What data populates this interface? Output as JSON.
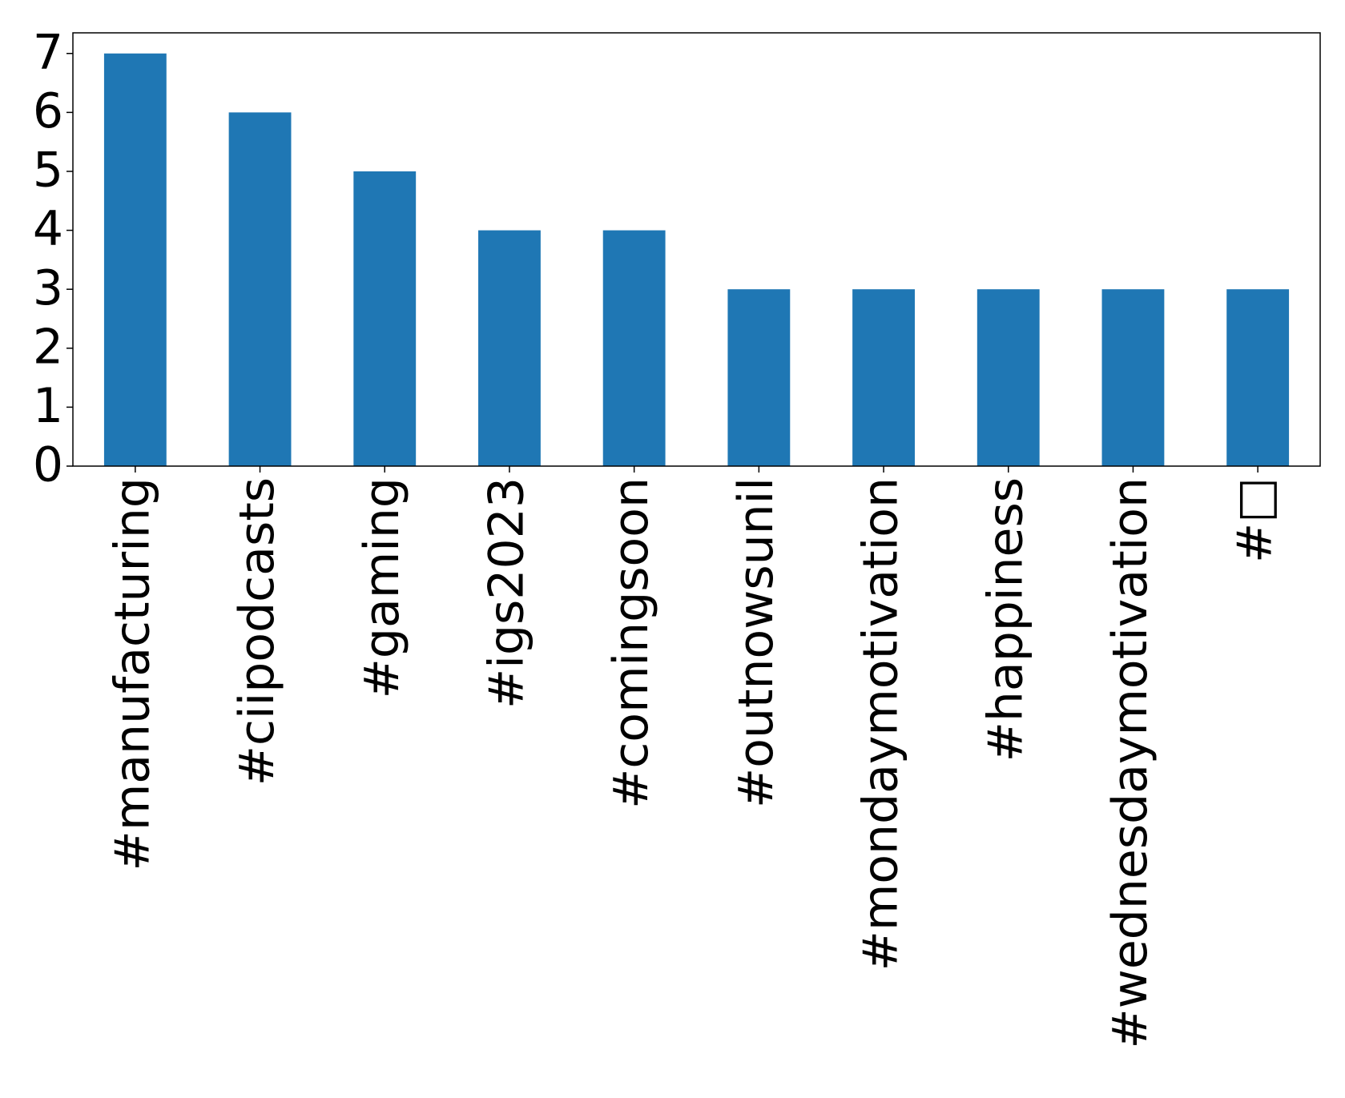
{
  "chart_data": {
    "type": "bar",
    "categories": [
      "#manufacturing",
      "#ciipodcasts",
      "#gaming",
      "#igs2023",
      "#comingsoon",
      "#outnowsunil",
      "#mondaymotivation",
      "#happiness",
      "#wednesdaymotivation",
      "#□"
    ],
    "values": [
      7,
      6,
      5,
      4,
      4,
      3,
      3,
      3,
      3,
      3
    ],
    "color": "#1f77b4",
    "ylim": [
      0,
      7.35
    ],
    "yticks": [
      0,
      1,
      2,
      3,
      4,
      5,
      6,
      7
    ],
    "grid": false
  }
}
